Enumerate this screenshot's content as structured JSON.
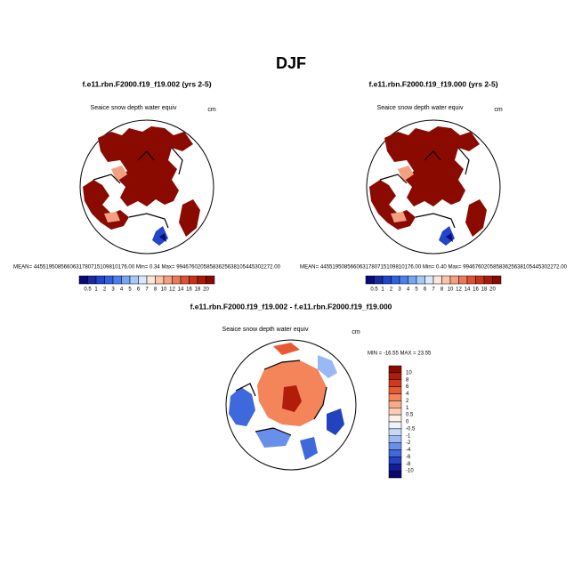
{
  "title": "DJF",
  "panels": [
    {
      "title": "f.e11.rbn.F2000.f19_f19.002 (yrs 2-5)",
      "variable": "Seaice snow depth water equiv",
      "units": "cm",
      "stats": "MEAN= 4455195085660631780715109810176.00  Min=   0.34  Max= 99467602058583625638105445302272.00",
      "colorbar_labels": [
        "0.5",
        "1",
        "2",
        "3",
        "4",
        "5",
        "6",
        "7",
        "8",
        "10",
        "12",
        "14",
        "16",
        "18",
        "20"
      ],
      "colorbar_colors": [
        "#0a0a78",
        "#1a2aa0",
        "#2244c8",
        "#3060e0",
        "#4a80ee",
        "#78a4f4",
        "#a8c8f8",
        "#d8e8fc",
        "#fde5d8",
        "#f9c4a8",
        "#f4a080",
        "#ec7a58",
        "#dc5232",
        "#c83218",
        "#a81a0a",
        "#8a0a00"
      ]
    },
    {
      "title": "f.e11.rbn.F2000.f19_f19.000 (yrs 2-5)",
      "variable": "Seaice snow depth water equiv",
      "units": "cm",
      "stats": "MEAN= 4455195085660631780715109810176.00  Min=   0.40  Max= 99467602058583625638105445302272.00",
      "colorbar_labels": [
        "0.5",
        "1",
        "2",
        "3",
        "4",
        "5",
        "6",
        "7",
        "8",
        "10",
        "12",
        "14",
        "16",
        "18",
        "20"
      ],
      "colorbar_colors": [
        "#0a0a78",
        "#1a2aa0",
        "#2244c8",
        "#3060e0",
        "#4a80ee",
        "#78a4f4",
        "#a8c8f8",
        "#d8e8fc",
        "#fde5d8",
        "#f9c4a8",
        "#f4a080",
        "#ec7a58",
        "#dc5232",
        "#c83218",
        "#a81a0a",
        "#8a0a00"
      ]
    }
  ],
  "difference": {
    "title": "f.e11.rbn.F2000.f19_f19.002 - f.e11.rbn.F2000.f19_f19.000",
    "variable": "Seaice snow depth water equiv",
    "units": "cm",
    "stats": "MIN = -16.55 MAX =  23.55",
    "colorbar_labels": [
      "10",
      "8",
      "6",
      "4",
      "2",
      "1",
      "0.5",
      "0",
      "-0.5",
      "-1",
      "-2",
      "-4",
      "-6",
      "-8",
      "-10"
    ],
    "colorbar_colors": [
      "#8a0a00",
      "#b01e0a",
      "#d03a1c",
      "#e85a34",
      "#f4845a",
      "#f9aa84",
      "#fccdb4",
      "#fef0e8",
      "#eef2fe",
      "#c8d8fa",
      "#9ab8f4",
      "#6890ea",
      "#3e68dc",
      "#2242c0",
      "#141c98",
      "#080870"
    ]
  }
}
